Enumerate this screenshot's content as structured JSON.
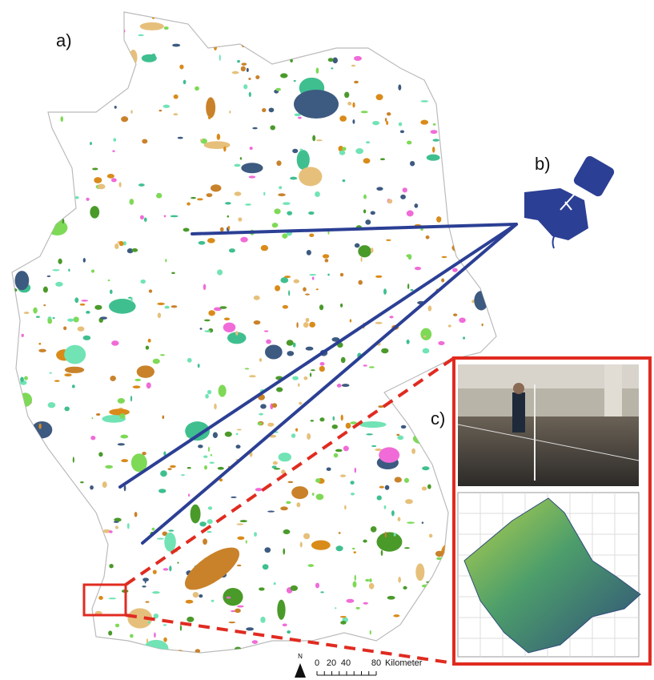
{
  "panels": {
    "a": "a)",
    "b": "b)",
    "c": "c)"
  },
  "north_arrow": "N",
  "scale_bar": {
    "labels": [
      "0",
      "20",
      "40",
      "80"
    ],
    "unit": "Kilometer"
  }
}
